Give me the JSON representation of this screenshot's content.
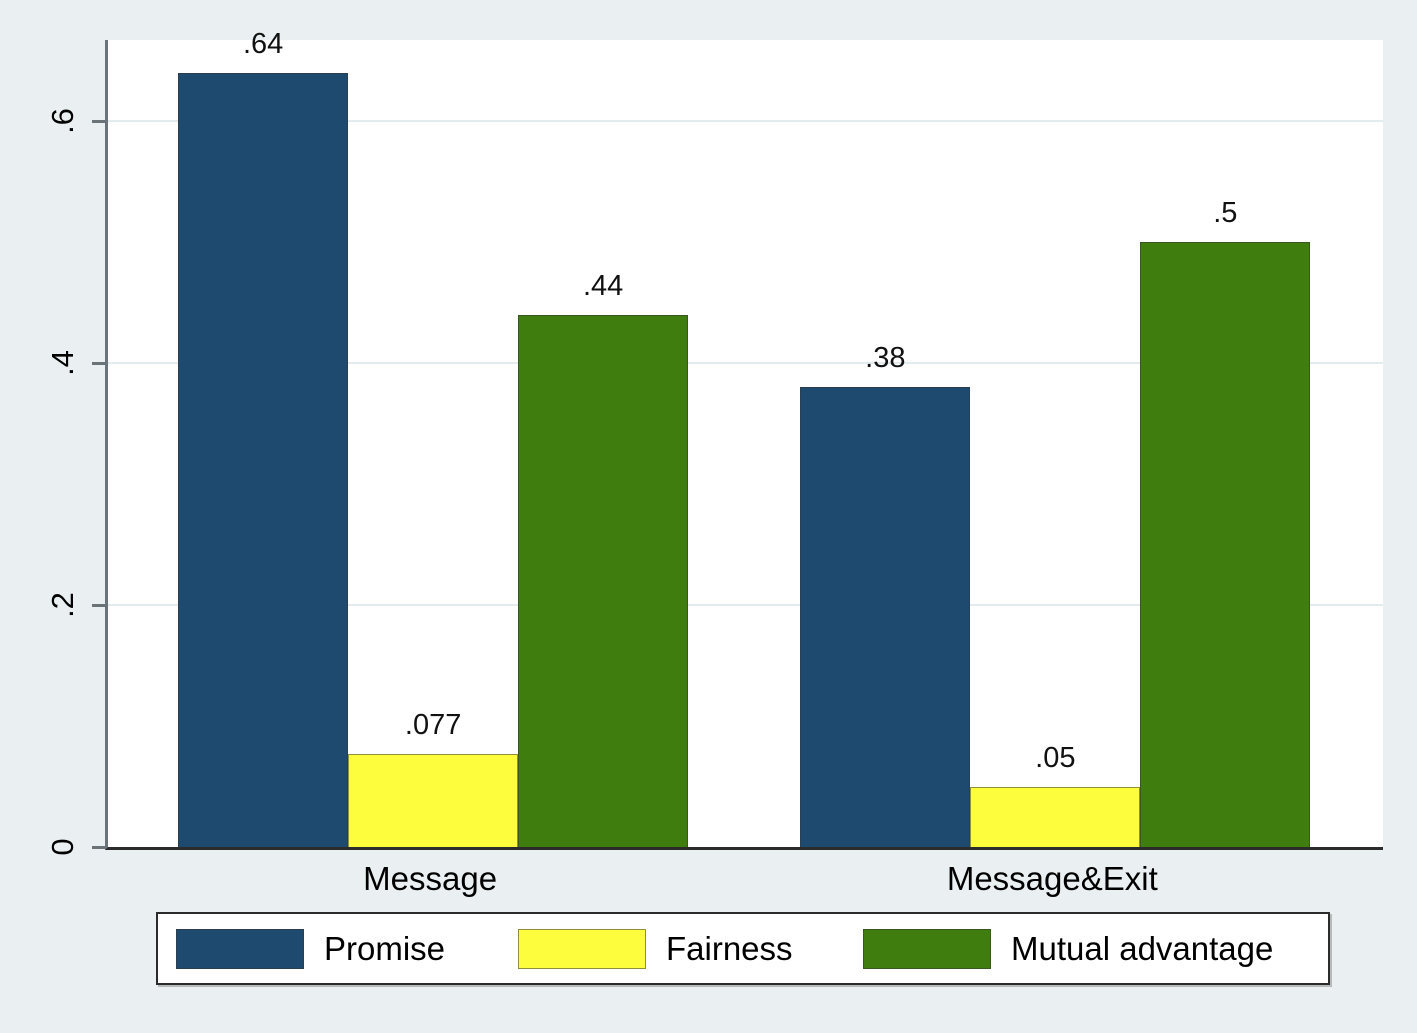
{
  "chart_data": {
    "type": "bar",
    "title": "",
    "categories": [
      "Message",
      "Message&Exit"
    ],
    "series": [
      {
        "name": "Promise",
        "color": "#1d4a6e",
        "values": [
          0.64,
          0.38
        ],
        "value_labels": [
          ".64",
          ".38"
        ]
      },
      {
        "name": "Fairness",
        "color": "#fdfd3d",
        "values": [
          0.077,
          0.05
        ],
        "value_labels": [
          ".077",
          ".05"
        ]
      },
      {
        "name": "Mutual advantage",
        "color": "#3f7d0e",
        "values": [
          0.44,
          0.5
        ],
        "value_labels": [
          ".44",
          ".5"
        ]
      }
    ],
    "xlabel": "",
    "ylabel": "",
    "ylim": [
      0,
      0.667
    ],
    "y_ticks": [
      0,
      0.2,
      0.4,
      0.6
    ],
    "y_tick_labels": [
      "0",
      ".2",
      ".4",
      ".6"
    ],
    "grid": true,
    "legend_position": "bottom"
  },
  "colors": {
    "background": "#eaf0f2",
    "plot_background": "#ffffff",
    "gridline": "#e3ebee",
    "axis_y": "#6a7478",
    "axis_x": "#2b2b2b",
    "text": "#000000"
  }
}
